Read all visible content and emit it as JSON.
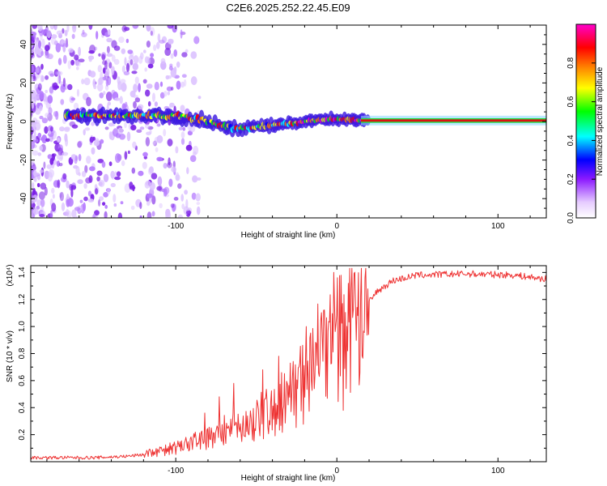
{
  "title": "C2E6.2025.252.22.45.E09",
  "chart_data": [
    {
      "type": "heatmap",
      "description_free": true,
      "xlabel": "Height of straight line (km)",
      "ylabel": "Frequency (Hz)",
      "xlim": [
        -190,
        130
      ],
      "ylim": [
        -50,
        50
      ],
      "xticks": [
        -100,
        0,
        100
      ],
      "yticks": [
        -40,
        -20,
        0,
        20,
        40
      ],
      "colorbar": {
        "label": "Normalized spectral amplitude",
        "range": [
          0.0,
          1.0
        ],
        "ticks": [
          0.0,
          0.2,
          0.4,
          0.6,
          0.8
        ],
        "colormap": [
          "#ffffff",
          "#e6ccff",
          "#8c1aff",
          "#0000ff",
          "#00ffff",
          "#00ff00",
          "#ffff00",
          "#ff8000",
          "#ff0000",
          "#ff00cc"
        ]
      },
      "center_line": [
        {
          "x": -165,
          "y": 3
        },
        {
          "x": -140,
          "y": 3
        },
        {
          "x": -120,
          "y": 3
        },
        {
          "x": -100,
          "y": 3
        },
        {
          "x": -85,
          "y": 1
        },
        {
          "x": -72,
          "y": -2
        },
        {
          "x": -62,
          "y": -4
        },
        {
          "x": -52,
          "y": -3
        },
        {
          "x": -40,
          "y": -2
        },
        {
          "x": -30,
          "y": -1
        },
        {
          "x": -20,
          "y": 0
        },
        {
          "x": -10,
          "y": 1
        },
        {
          "x": 0,
          "y": 1
        },
        {
          "x": 10,
          "y": 1
        },
        {
          "x": 20,
          "y": 0.5
        },
        {
          "x": 130,
          "y": 0.5
        }
      ]
    },
    {
      "type": "line",
      "xlabel": "Height of straight line (km)",
      "ylabel": "SNR (10 * v/v)",
      "y_multiplier": "(x10⁴)",
      "xlim": [
        -190,
        130
      ],
      "ylim": [
        0,
        1.45
      ],
      "xticks": [
        -100,
        0,
        100
      ],
      "yticks": [
        0.2,
        0.4,
        0.6,
        0.8,
        1.0,
        1.2,
        1.4
      ],
      "series": [
        {
          "name": "SNR",
          "color": "#ee3333",
          "envelope": [
            {
              "x": -190,
              "y": 0.03
            },
            {
              "x": -150,
              "y": 0.03
            },
            {
              "x": -130,
              "y": 0.04
            },
            {
              "x": -115,
              "y": 0.06
            },
            {
              "x": -100,
              "y": 0.1
            },
            {
              "x": -90,
              "y": 0.13
            },
            {
              "x": -80,
              "y": 0.18
            },
            {
              "x": -70,
              "y": 0.22
            },
            {
              "x": -60,
              "y": 0.24
            },
            {
              "x": -50,
              "y": 0.3
            },
            {
              "x": -40,
              "y": 0.38
            },
            {
              "x": -30,
              "y": 0.48
            },
            {
              "x": -20,
              "y": 0.6
            },
            {
              "x": -12,
              "y": 0.72
            },
            {
              "x": -5,
              "y": 0.85
            },
            {
              "x": 5,
              "y": 0.95
            },
            {
              "x": 15,
              "y": 1.1
            },
            {
              "x": 25,
              "y": 1.26
            },
            {
              "x": 35,
              "y": 1.34
            },
            {
              "x": 50,
              "y": 1.38
            },
            {
              "x": 80,
              "y": 1.39
            },
            {
              "x": 110,
              "y": 1.38
            },
            {
              "x": 130,
              "y": 1.35
            }
          ],
          "spikes": [
            {
              "x": -82,
              "y": 0.36
            },
            {
              "x": -73,
              "y": 0.48
            },
            {
              "x": -64,
              "y": 0.58
            },
            {
              "x": -46,
              "y": 0.68
            },
            {
              "x": -36,
              "y": 0.78
            },
            {
              "x": -19,
              "y": 1.0
            },
            {
              "x": -8,
              "y": 1.12
            },
            {
              "x": -2,
              "y": 1.4
            },
            {
              "x": 4,
              "y": 0.38
            },
            {
              "x": 9,
              "y": 1.28
            }
          ]
        }
      ]
    }
  ]
}
